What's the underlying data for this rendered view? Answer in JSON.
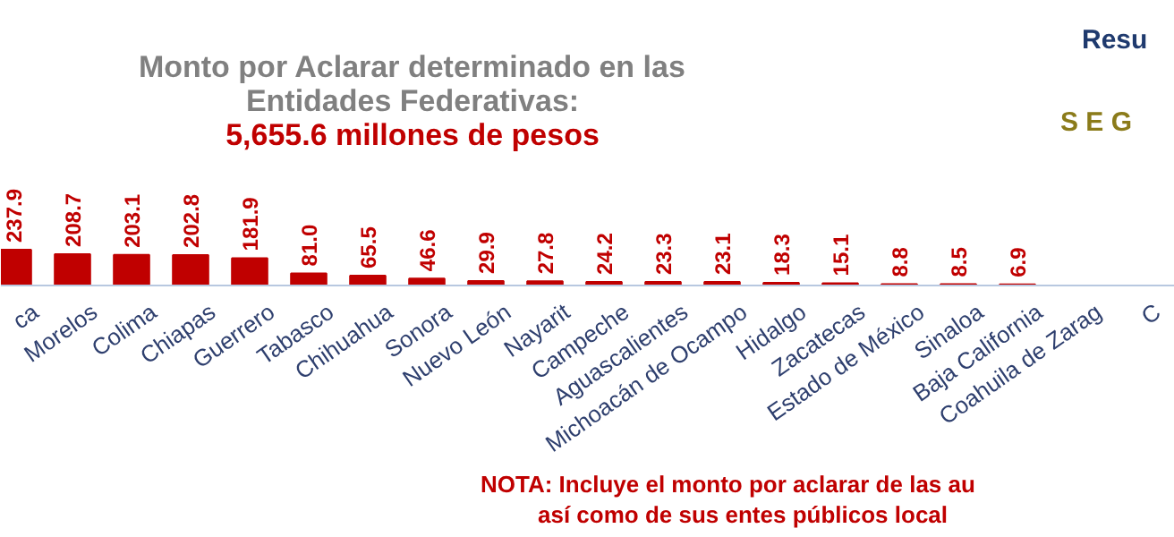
{
  "chart_data": {
    "type": "bar",
    "title": "Monto por Aclarar determinado en las Entidades Federativas:",
    "subtitle": "5,655.6 millones de pesos",
    "categories": [
      "ca",
      "Morelos",
      "Colima",
      "Chiapas",
      "Guerrero",
      "Tabasco",
      "Chihuahua",
      "Sonora",
      "Nuevo León",
      "Nayarit",
      "Campeche",
      "Aguascalientes",
      "Michoacán de Ocampo",
      "Hidalgo",
      "Zacatecas",
      "Estado de México",
      "Sinaloa",
      "Baja California",
      "Coahuila de Zarag",
      "C"
    ],
    "values": [
      237.9,
      208.7,
      203.1,
      202.8,
      181.9,
      81.0,
      65.5,
      46.6,
      29.9,
      27.8,
      24.2,
      23.3,
      23.1,
      18.3,
      15.1,
      8.8,
      8.5,
      6.9,
      null,
      null
    ],
    "color": "#c00000",
    "value_labels": [
      "237.9",
      "208.7",
      "203.1",
      "202.8",
      "181.9",
      "81.0",
      "65.5",
      "46.6",
      "29.9",
      "27.8",
      "24.2",
      "23.3",
      "23.1",
      "18.3",
      "15.1",
      "8.8",
      "8.5",
      "6.9",
      null,
      null
    ],
    "annotations": [
      "NOTA: Incluye el monto por aclarar de las au",
      "así como de sus entes públicos local",
      "Resu",
      "S E G"
    ]
  }
}
